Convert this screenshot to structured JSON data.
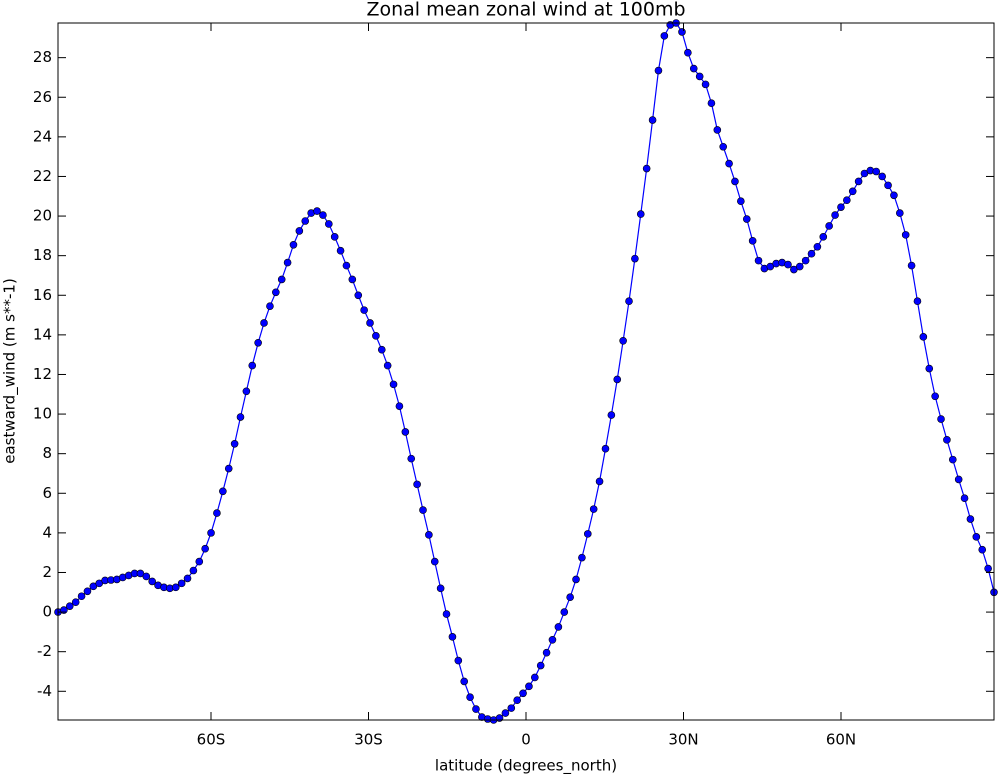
{
  "chart_data": {
    "type": "line",
    "title": "Zonal mean zonal wind at 100mb",
    "x_label": "latitude (degrees_north)",
    "y_label": "eastward_wind (m s**-1)",
    "color": "#0000ff",
    "marker": "o",
    "xlim": [
      -89.14,
      89.14
    ],
    "ylim": [
      -5.45,
      29.75
    ],
    "xticks": [
      {
        "value": -60,
        "label": "60S"
      },
      {
        "value": -30,
        "label": "30S"
      },
      {
        "value": 0,
        "label": "0"
      },
      {
        "value": 30,
        "label": "30N"
      },
      {
        "value": 60,
        "label": "60N"
      }
    ],
    "yticks": [
      -4,
      -2,
      0,
      2,
      4,
      6,
      8,
      10,
      12,
      14,
      16,
      18,
      20,
      22,
      24,
      26,
      28
    ],
    "x": [
      -89.14,
      -88.02,
      -86.9,
      -85.77,
      -84.65,
      -83.53,
      -82.41,
      -81.29,
      -80.17,
      -79.05,
      -77.93,
      -76.81,
      -75.68,
      -74.56,
      -73.44,
      -72.32,
      -71.2,
      -70.08,
      -68.96,
      -67.84,
      -66.71,
      -65.59,
      -64.47,
      -63.35,
      -62.23,
      -61.11,
      -59.99,
      -58.87,
      -57.74,
      -56.62,
      -55.5,
      -54.38,
      -53.26,
      -52.14,
      -51.02,
      -49.9,
      -48.77,
      -47.65,
      -46.53,
      -45.41,
      -44.29,
      -43.17,
      -42.05,
      -40.92,
      -39.8,
      -38.68,
      -37.56,
      -36.44,
      -35.32,
      -34.2,
      -33.08,
      -31.95,
      -30.83,
      -29.71,
      -28.59,
      -27.47,
      -26.35,
      -25.23,
      -24.11,
      -22.98,
      -21.86,
      -20.74,
      -19.62,
      -18.5,
      -17.38,
      -16.26,
      -15.14,
      -14.01,
      -12.89,
      -11.77,
      -10.65,
      -9.53,
      -8.41,
      -7.29,
      -6.17,
      -5.04,
      -3.92,
      -2.8,
      -1.68,
      -0.56,
      0.56,
      1.68,
      2.8,
      3.92,
      5.04,
      6.17,
      7.29,
      8.41,
      9.53,
      10.65,
      11.77,
      12.89,
      14.01,
      15.14,
      16.26,
      17.38,
      18.5,
      19.62,
      20.74,
      21.86,
      22.98,
      24.11,
      25.23,
      26.35,
      27.47,
      28.59,
      29.71,
      30.83,
      31.95,
      33.08,
      34.2,
      35.32,
      36.44,
      37.56,
      38.68,
      39.8,
      40.92,
      42.05,
      43.17,
      44.29,
      45.41,
      46.53,
      47.65,
      48.77,
      49.9,
      51.02,
      52.14,
      53.26,
      54.38,
      55.5,
      56.62,
      57.74,
      58.87,
      59.99,
      61.11,
      62.23,
      63.35,
      64.47,
      65.59,
      66.71,
      67.84,
      68.96,
      70.08,
      71.2,
      72.32,
      73.44,
      74.56,
      75.68,
      76.81,
      77.93,
      79.05,
      80.17,
      81.29,
      82.41,
      83.53,
      84.65,
      85.77,
      86.9,
      88.02,
      89.14
    ],
    "values": [
      0.0,
      0.1,
      0.3,
      0.5,
      0.8,
      1.05,
      1.3,
      1.45,
      1.6,
      1.62,
      1.65,
      1.75,
      1.85,
      1.95,
      1.95,
      1.8,
      1.55,
      1.35,
      1.25,
      1.2,
      1.25,
      1.45,
      1.7,
      2.1,
      2.55,
      3.2,
      4.0,
      5.0,
      6.1,
      7.25,
      8.5,
      9.85,
      11.15,
      12.45,
      13.6,
      14.6,
      15.45,
      16.15,
      16.8,
      17.65,
      18.55,
      19.25,
      19.75,
      20.15,
      20.25,
      20.05,
      19.6,
      18.95,
      18.25,
      17.5,
      16.8,
      16.0,
      15.25,
      14.6,
      13.95,
      13.25,
      12.45,
      11.5,
      10.4,
      9.1,
      7.75,
      6.45,
      5.15,
      3.9,
      2.55,
      1.2,
      -0.1,
      -1.25,
      -2.45,
      -3.5,
      -4.3,
      -4.9,
      -5.3,
      -5.4,
      -5.45,
      -5.35,
      -5.1,
      -4.85,
      -4.45,
      -4.1,
      -3.75,
      -3.3,
      -2.7,
      -2.05,
      -1.4,
      -0.75,
      0.0,
      0.75,
      1.65,
      2.75,
      3.95,
      5.2,
      6.6,
      8.25,
      9.95,
      11.75,
      13.7,
      15.7,
      17.85,
      20.1,
      22.4,
      24.85,
      27.35,
      29.1,
      29.65,
      29.75,
      29.3,
      28.25,
      27.45,
      27.05,
      26.65,
      25.7,
      24.35,
      23.5,
      22.65,
      21.75,
      20.75,
      19.85,
      18.75,
      17.75,
      17.35,
      17.45,
      17.6,
      17.65,
      17.55,
      17.3,
      17.45,
      17.75,
      18.1,
      18.45,
      18.95,
      19.5,
      20.05,
      20.45,
      20.8,
      21.25,
      21.75,
      22.15,
      22.3,
      22.25,
      22.0,
      21.55,
      21.05,
      20.15,
      19.05,
      17.5,
      15.7,
      13.9,
      12.3,
      10.9,
      9.75,
      8.7,
      7.7,
      6.7,
      5.75,
      4.7,
      3.8,
      3.15,
      2.2,
      1.0
    ]
  }
}
